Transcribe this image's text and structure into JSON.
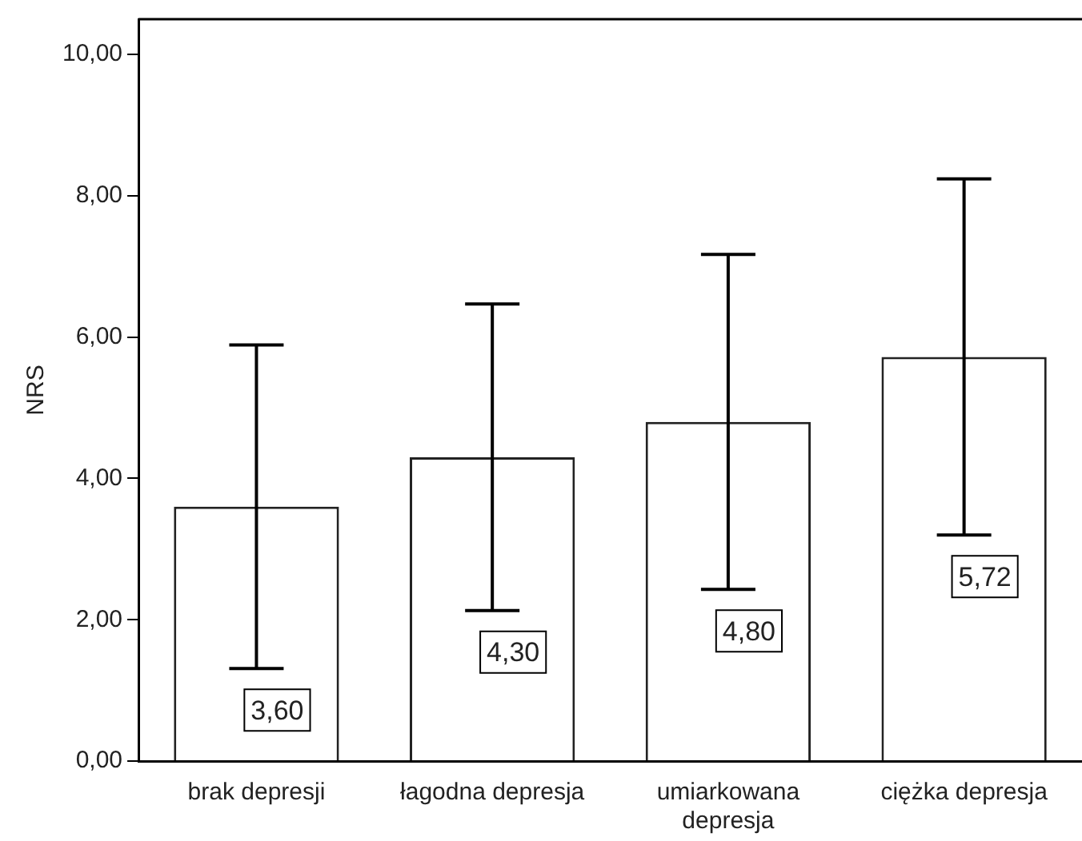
{
  "chart_data": {
    "type": "bar",
    "ylabel": "NRS",
    "categories": [
      "brak depresji",
      "łagodna depresja",
      "umiarkowana depresja",
      "ciężka depresja"
    ],
    "values": [
      3.6,
      4.3,
      4.8,
      5.72
    ],
    "errors": [
      2.29,
      2.17,
      2.37,
      2.52
    ],
    "value_labels": [
      "3,60",
      "4,30",
      "4,80",
      "5,72"
    ],
    "color": "#ffffff",
    "ylim": [
      0,
      10.5
    ],
    "yticks": [
      {
        "value": 0,
        "label": "0,00"
      },
      {
        "value": 2,
        "label": "2,00"
      },
      {
        "value": 4,
        "label": "4,00"
      },
      {
        "value": 6,
        "label": "6,00"
      },
      {
        "value": 8,
        "label": "8,00"
      },
      {
        "value": 10,
        "label": "10,00"
      }
    ],
    "grid": false,
    "legend": false
  }
}
